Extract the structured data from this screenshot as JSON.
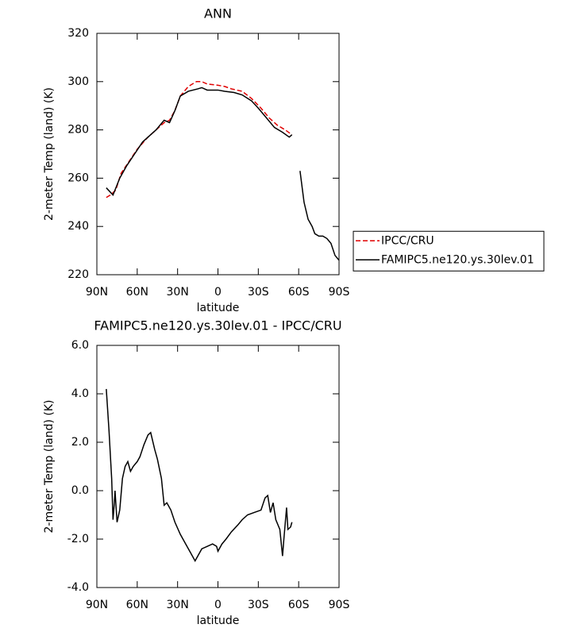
{
  "chart_data": [
    {
      "type": "line",
      "title": "ANN",
      "x_label": "latitude",
      "y_label": "2-meter Temp (land) (K)",
      "xlim": [
        90,
        -90
      ],
      "xticks": [
        {
          "value": 90,
          "label": "90N"
        },
        {
          "value": 60,
          "label": "60N"
        },
        {
          "value": 30,
          "label": "30N"
        },
        0,
        {
          "value": -30,
          "label": "30S"
        },
        {
          "value": -60,
          "label": "60S"
        },
        {
          "value": -90,
          "label": "90S"
        }
      ],
      "ylim": [
        220,
        320
      ],
      "yticks": [
        220,
        240,
        260,
        280,
        300,
        320
      ],
      "legend": "right",
      "series": [
        {
          "name": "IPCC/CRU",
          "color": "#e00000",
          "line_style": "dashed",
          "x": [
            83,
            80,
            76,
            72,
            66,
            60,
            52,
            46,
            40,
            36,
            32,
            28,
            22,
            16,
            12,
            8,
            0,
            -5,
            -10,
            -18,
            -25,
            -32,
            -38,
            -44,
            -50,
            -55
          ],
          "values": [
            252,
            253,
            255,
            262,
            267,
            272,
            277,
            280,
            283,
            284,
            288,
            294,
            298,
            300,
            300,
            299,
            298.5,
            298,
            297,
            296,
            293,
            289,
            285,
            282,
            280,
            278
          ]
        },
        {
          "name": "FAMIPC5.ne120.ys.30lev.01",
          "color": "#000000",
          "line_style": "solid",
          "x": [
            83,
            78,
            73,
            68,
            62,
            56,
            46,
            40,
            36,
            32,
            28,
            22,
            15,
            12,
            8,
            0,
            -5,
            -12,
            -18,
            -25,
            -30,
            -36,
            -42,
            -48,
            -53,
            -55,
            -58,
            -61,
            -64,
            -67,
            -70,
            -72,
            -75,
            -78,
            -81,
            -84,
            -87,
            -90
          ],
          "values": [
            256,
            253,
            260,
            265,
            270,
            275,
            280,
            284,
            283,
            288,
            294,
            296,
            297,
            297.5,
            296.5,
            296.5,
            296,
            295.5,
            294.5,
            292,
            289,
            285,
            281,
            279,
            277,
            278,
            null,
            263,
            250,
            243,
            240,
            237,
            236,
            236,
            235,
            233,
            228,
            226
          ]
        }
      ]
    },
    {
      "type": "line",
      "title": "FAMIPC5.ne120.ys.30lev.01 - IPCC/CRU",
      "x_label": "latitude",
      "y_label": "2-meter Temp (land) (K)",
      "xlim": [
        90,
        -90
      ],
      "xticks": [
        {
          "value": 90,
          "label": "90N"
        },
        {
          "value": 60,
          "label": "60N"
        },
        {
          "value": 30,
          "label": "30N"
        },
        0,
        {
          "value": -30,
          "label": "30S"
        },
        {
          "value": -60,
          "label": "60S"
        },
        {
          "value": -90,
          "label": "90S"
        }
      ],
      "ylim": [
        -4,
        6
      ],
      "yticks": [
        {
          "value": -4,
          "label": "-4.0"
        },
        {
          "value": -2,
          "label": "-2.0"
        },
        {
          "value": 0,
          "label": "0.0"
        },
        {
          "value": 2,
          "label": "2.0"
        },
        {
          "value": 4,
          "label": "4.0"
        },
        {
          "value": 6,
          "label": "6.0"
        }
      ],
      "series": [
        {
          "color": "#000000",
          "line_style": "solid",
          "x": [
            83,
            81,
            79,
            78,
            77,
            76.5,
            75,
            73,
            71,
            69,
            67,
            65,
            63,
            60,
            58,
            55,
            52,
            50,
            47,
            45,
            42,
            40,
            38,
            35,
            32,
            28,
            24,
            20,
            17,
            15,
            12,
            8,
            4,
            1,
            0,
            -3,
            -6,
            -10,
            -15,
            -18,
            -22,
            -27,
            -32,
            -35,
            -37,
            -39,
            -41,
            -43,
            -46,
            -48,
            -49,
            -51,
            -52,
            -54,
            -55
          ],
          "values": [
            4.2,
            2.5,
            0.5,
            -1.2,
            -0.5,
            0,
            -1.3,
            -0.8,
            0.5,
            1.0,
            1.2,
            0.8,
            1.0,
            1.2,
            1.4,
            1.9,
            2.3,
            2.4,
            1.7,
            1.3,
            0.5,
            -0.6,
            -0.5,
            -0.8,
            -1.3,
            -1.8,
            -2.2,
            -2.6,
            -2.9,
            -2.7,
            -2.4,
            -2.3,
            -2.2,
            -2.3,
            -2.5,
            -2.2,
            -2.0,
            -1.7,
            -1.4,
            -1.2,
            -1.0,
            -0.9,
            -0.8,
            -0.3,
            -0.2,
            -0.9,
            -0.5,
            -1.2,
            -1.6,
            -2.7,
            -2.0,
            -0.7,
            -1.6,
            -1.5,
            -1.3
          ]
        }
      ]
    }
  ]
}
